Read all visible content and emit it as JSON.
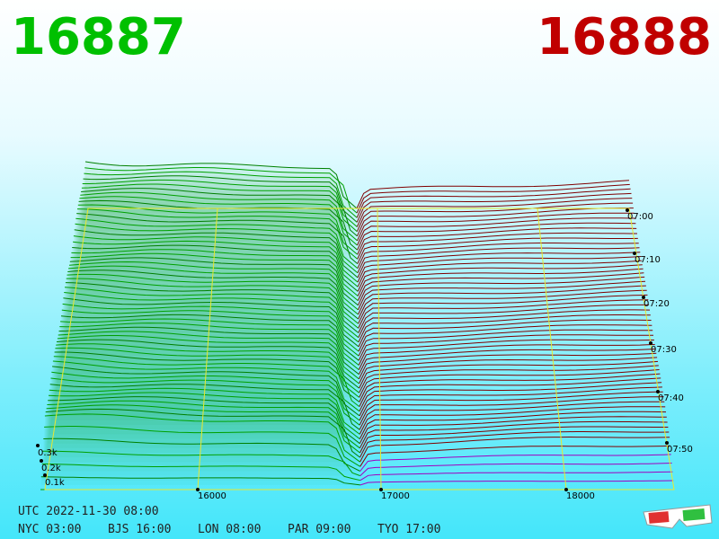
{
  "header": {
    "bid": "16887",
    "ask": "16888"
  },
  "depth_axis": {
    "labels": [
      "0.3k",
      "0.2k",
      "0.1k"
    ]
  },
  "price_axis": {
    "labels": [
      "16000",
      "17000",
      "18000"
    ]
  },
  "time_axis": {
    "labels": [
      "07:00",
      "07:10",
      "07:20",
      "07:30",
      "07:40",
      "07:50"
    ]
  },
  "clock": {
    "utc": "UTC 2022-11-30 08:00",
    "cities": [
      "NYC 03:00",
      "BJS 16:00",
      "LON 08:00",
      "PAR 09:00",
      "TYO 17:00"
    ]
  }
}
